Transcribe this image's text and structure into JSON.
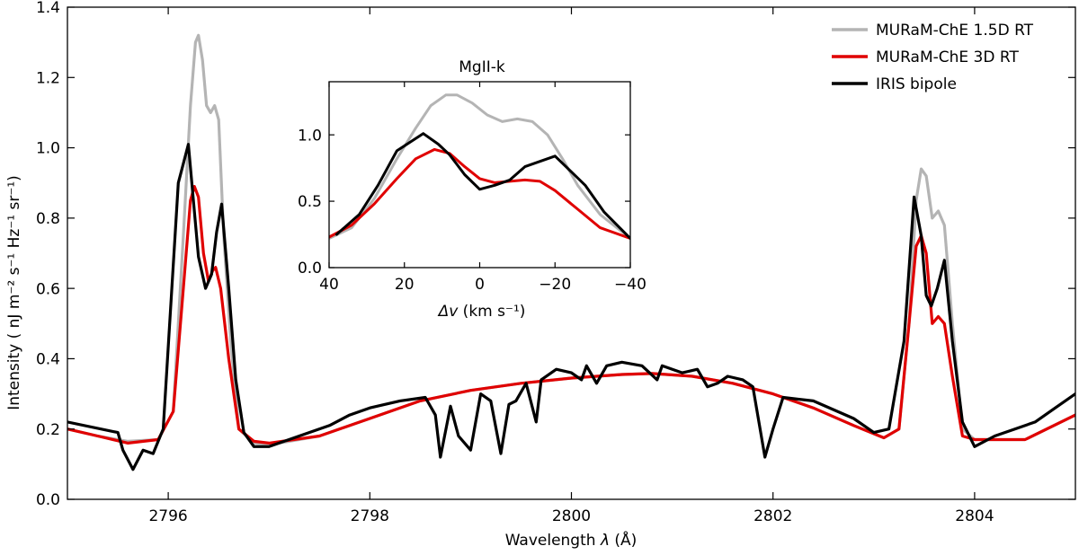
{
  "chart_data": [
    {
      "type": "line",
      "id": "main",
      "xlabel_prefix": "Wavelength ",
      "xlabel_var": "λ",
      "xlabel_suffix": " (Å)",
      "ylabel": "Intensity ( nJ m⁻² s⁻¹ Hz⁻¹ sr⁻¹)",
      "xlim": [
        2795.0,
        2805.0
      ],
      "ylim": [
        0.0,
        1.4
      ],
      "xticks": [
        2796,
        2798,
        2800,
        2802,
        2804
      ],
      "xtick_labels": [
        "2796",
        "2798",
        "2800",
        "2802",
        "2804"
      ],
      "yticks": [
        0.0,
        0.2,
        0.4,
        0.6,
        0.8,
        1.0,
        1.2,
        1.4
      ],
      "ytick_labels": [
        "0.0",
        "0.2",
        "0.4",
        "0.6",
        "0.8",
        "1.0",
        "1.2",
        "1.4"
      ],
      "grid": false,
      "legend": "top-right",
      "series": [
        {
          "name": "MURaM-ChE 1.5D RT",
          "color": "#b4b4b4",
          "points": [
            [
              2795.0,
              0.2
            ],
            [
              2795.3,
              0.18
            ],
            [
              2795.6,
              0.165
            ],
            [
              2795.9,
              0.17
            ],
            [
              2796.05,
              0.25
            ],
            [
              2796.15,
              0.75
            ],
            [
              2796.22,
              1.12
            ],
            [
              2796.27,
              1.3
            ],
            [
              2796.3,
              1.32
            ],
            [
              2796.34,
              1.25
            ],
            [
              2796.38,
              1.12
            ],
            [
              2796.42,
              1.1
            ],
            [
              2796.46,
              1.12
            ],
            [
              2796.5,
              1.08
            ],
            [
              2796.55,
              0.75
            ],
            [
              2796.62,
              0.45
            ],
            [
              2796.7,
              0.2
            ],
            [
              2796.85,
              0.16
            ],
            [
              2797.0,
              0.155
            ],
            [
              2797.5,
              0.18
            ],
            [
              2798.0,
              0.23
            ],
            [
              2798.5,
              0.28
            ],
            [
              2799.0,
              0.31
            ],
            [
              2799.5,
              0.33
            ],
            [
              2800.0,
              0.345
            ],
            [
              2800.5,
              0.355
            ],
            [
              2800.8,
              0.358
            ],
            [
              2801.2,
              0.35
            ],
            [
              2801.6,
              0.33
            ],
            [
              2802.0,
              0.3
            ],
            [
              2802.4,
              0.26
            ],
            [
              2802.8,
              0.21
            ],
            [
              2803.1,
              0.175
            ],
            [
              2803.25,
              0.2
            ],
            [
              2803.35,
              0.5
            ],
            [
              2803.42,
              0.85
            ],
            [
              2803.47,
              0.94
            ],
            [
              2803.52,
              0.92
            ],
            [
              2803.58,
              0.8
            ],
            [
              2803.64,
              0.82
            ],
            [
              2803.7,
              0.78
            ],
            [
              2803.78,
              0.5
            ],
            [
              2803.88,
              0.2
            ],
            [
              2804.0,
              0.17
            ],
            [
              2804.5,
              0.17
            ],
            [
              2805.0,
              0.24
            ]
          ]
        },
        {
          "name": "MURaM-ChE 3D RT",
          "color": "#e00000",
          "points": [
            [
              2795.0,
              0.2
            ],
            [
              2795.3,
              0.18
            ],
            [
              2795.6,
              0.16
            ],
            [
              2795.9,
              0.17
            ],
            [
              2796.05,
              0.25
            ],
            [
              2796.15,
              0.6
            ],
            [
              2796.22,
              0.85
            ],
            [
              2796.26,
              0.89
            ],
            [
              2796.3,
              0.86
            ],
            [
              2796.35,
              0.7
            ],
            [
              2796.4,
              0.62
            ],
            [
              2796.44,
              0.65
            ],
            [
              2796.47,
              0.66
            ],
            [
              2796.52,
              0.6
            ],
            [
              2796.6,
              0.4
            ],
            [
              2796.7,
              0.2
            ],
            [
              2796.85,
              0.165
            ],
            [
              2797.0,
              0.16
            ],
            [
              2797.5,
              0.18
            ],
            [
              2798.0,
              0.23
            ],
            [
              2798.5,
              0.28
            ],
            [
              2799.0,
              0.31
            ],
            [
              2799.5,
              0.33
            ],
            [
              2800.0,
              0.345
            ],
            [
              2800.5,
              0.355
            ],
            [
              2800.8,
              0.358
            ],
            [
              2801.2,
              0.35
            ],
            [
              2801.6,
              0.33
            ],
            [
              2802.0,
              0.3
            ],
            [
              2802.4,
              0.26
            ],
            [
              2802.8,
              0.21
            ],
            [
              2803.1,
              0.175
            ],
            [
              2803.25,
              0.2
            ],
            [
              2803.35,
              0.5
            ],
            [
              2803.42,
              0.72
            ],
            [
              2803.47,
              0.75
            ],
            [
              2803.52,
              0.7
            ],
            [
              2803.58,
              0.5
            ],
            [
              2803.64,
              0.52
            ],
            [
              2803.7,
              0.5
            ],
            [
              2803.78,
              0.35
            ],
            [
              2803.88,
              0.18
            ],
            [
              2804.0,
              0.17
            ],
            [
              2804.5,
              0.17
            ],
            [
              2805.0,
              0.24
            ]
          ]
        },
        {
          "name": "IRIS bipole",
          "color": "#000000",
          "points": [
            [
              2795.0,
              0.22
            ],
            [
              2795.5,
              0.19
            ],
            [
              2795.55,
              0.14
            ],
            [
              2795.65,
              0.085
            ],
            [
              2795.75,
              0.14
            ],
            [
              2795.85,
              0.13
            ],
            [
              2795.95,
              0.2
            ],
            [
              2796.1,
              0.9
            ],
            [
              2796.2,
              1.01
            ],
            [
              2796.3,
              0.69
            ],
            [
              2796.37,
              0.6
            ],
            [
              2796.43,
              0.64
            ],
            [
              2796.48,
              0.76
            ],
            [
              2796.53,
              0.84
            ],
            [
              2796.6,
              0.6
            ],
            [
              2796.67,
              0.34
            ],
            [
              2796.75,
              0.19
            ],
            [
              2796.85,
              0.15
            ],
            [
              2797.0,
              0.15
            ],
            [
              2797.3,
              0.18
            ],
            [
              2797.6,
              0.21
            ],
            [
              2797.8,
              0.24
            ],
            [
              2798.0,
              0.26
            ],
            [
              2798.3,
              0.28
            ],
            [
              2798.55,
              0.29
            ],
            [
              2798.65,
              0.24
            ],
            [
              2798.7,
              0.12
            ],
            [
              2798.8,
              0.265
            ],
            [
              2798.88,
              0.18
            ],
            [
              2799.0,
              0.14
            ],
            [
              2799.1,
              0.3
            ],
            [
              2799.2,
              0.28
            ],
            [
              2799.3,
              0.13
            ],
            [
              2799.38,
              0.27
            ],
            [
              2799.45,
              0.28
            ],
            [
              2799.55,
              0.33
            ],
            [
              2799.65,
              0.22
            ],
            [
              2799.7,
              0.34
            ],
            [
              2799.85,
              0.37
            ],
            [
              2800.0,
              0.36
            ],
            [
              2800.1,
              0.34
            ],
            [
              2800.15,
              0.38
            ],
            [
              2800.25,
              0.33
            ],
            [
              2800.35,
              0.38
            ],
            [
              2800.5,
              0.39
            ],
            [
              2800.7,
              0.38
            ],
            [
              2800.85,
              0.34
            ],
            [
              2800.9,
              0.38
            ],
            [
              2801.1,
              0.36
            ],
            [
              2801.25,
              0.37
            ],
            [
              2801.35,
              0.32
            ],
            [
              2801.45,
              0.33
            ],
            [
              2801.55,
              0.35
            ],
            [
              2801.7,
              0.34
            ],
            [
              2801.8,
              0.32
            ],
            [
              2801.92,
              0.12
            ],
            [
              2802.0,
              0.2
            ],
            [
              2802.1,
              0.29
            ],
            [
              2802.4,
              0.28
            ],
            [
              2802.8,
              0.23
            ],
            [
              2803.0,
              0.19
            ],
            [
              2803.15,
              0.2
            ],
            [
              2803.3,
              0.45
            ],
            [
              2803.4,
              0.86
            ],
            [
              2803.47,
              0.75
            ],
            [
              2803.52,
              0.58
            ],
            [
              2803.57,
              0.55
            ],
            [
              2803.63,
              0.6
            ],
            [
              2803.7,
              0.68
            ],
            [
              2803.78,
              0.45
            ],
            [
              2803.88,
              0.22
            ],
            [
              2804.0,
              0.15
            ],
            [
              2804.2,
              0.18
            ],
            [
              2804.4,
              0.2
            ],
            [
              2804.6,
              0.22
            ],
            [
              2804.8,
              0.26
            ],
            [
              2805.0,
              0.3
            ]
          ]
        }
      ]
    },
    {
      "type": "line",
      "id": "inset",
      "title": "MgII-k",
      "xlabel_var": "Δv",
      "xlabel_units": " (km s⁻¹)",
      "xlim": [
        40,
        -40
      ],
      "ylim": [
        0.0,
        1.4
      ],
      "xticks": [
        40,
        20,
        0,
        -20,
        -40
      ],
      "xtick_labels": [
        "40",
        "20",
        "0",
        "−20",
        "−40"
      ],
      "yticks": [
        0.0,
        0.5,
        1.0
      ],
      "ytick_labels": [
        "0.0",
        "0.5",
        "1.0"
      ],
      "grid": false,
      "series": [
        {
          "name": "MURaM-ChE 1.5D RT",
          "color": "#b4b4b4",
          "points": [
            [
              40,
              0.22
            ],
            [
              34,
              0.3
            ],
            [
              28,
              0.52
            ],
            [
              22,
              0.82
            ],
            [
              17,
              1.05
            ],
            [
              13,
              1.22
            ],
            [
              9,
              1.3
            ],
            [
              6,
              1.3
            ],
            [
              2,
              1.24
            ],
            [
              -2,
              1.15
            ],
            [
              -6,
              1.1
            ],
            [
              -10,
              1.12
            ],
            [
              -14,
              1.1
            ],
            [
              -18,
              1.0
            ],
            [
              -22,
              0.82
            ],
            [
              -26,
              0.62
            ],
            [
              -32,
              0.4
            ],
            [
              -40,
              0.22
            ]
          ]
        },
        {
          "name": "MURaM-ChE 3D RT",
          "color": "#e00000",
          "points": [
            [
              40,
              0.23
            ],
            [
              34,
              0.32
            ],
            [
              28,
              0.48
            ],
            [
              22,
              0.67
            ],
            [
              17,
              0.82
            ],
            [
              12,
              0.89
            ],
            [
              8,
              0.86
            ],
            [
              4,
              0.76
            ],
            [
              0,
              0.67
            ],
            [
              -4,
              0.64
            ],
            [
              -8,
              0.65
            ],
            [
              -12,
              0.66
            ],
            [
              -16,
              0.65
            ],
            [
              -20,
              0.58
            ],
            [
              -26,
              0.44
            ],
            [
              -32,
              0.3
            ],
            [
              -40,
              0.22
            ]
          ]
        },
        {
          "name": "IRIS bipole",
          "color": "#000000",
          "points": [
            [
              38,
              0.25
            ],
            [
              32,
              0.4
            ],
            [
              27,
              0.62
            ],
            [
              22,
              0.88
            ],
            [
              15,
              1.01
            ],
            [
              11,
              0.93
            ],
            [
              8,
              0.85
            ],
            [
              4,
              0.7
            ],
            [
              0,
              0.59
            ],
            [
              -4,
              0.62
            ],
            [
              -8,
              0.66
            ],
            [
              -12,
              0.76
            ],
            [
              -20,
              0.84
            ],
            [
              -28,
              0.62
            ],
            [
              -33,
              0.42
            ],
            [
              -40,
              0.22
            ]
          ]
        }
      ]
    }
  ]
}
